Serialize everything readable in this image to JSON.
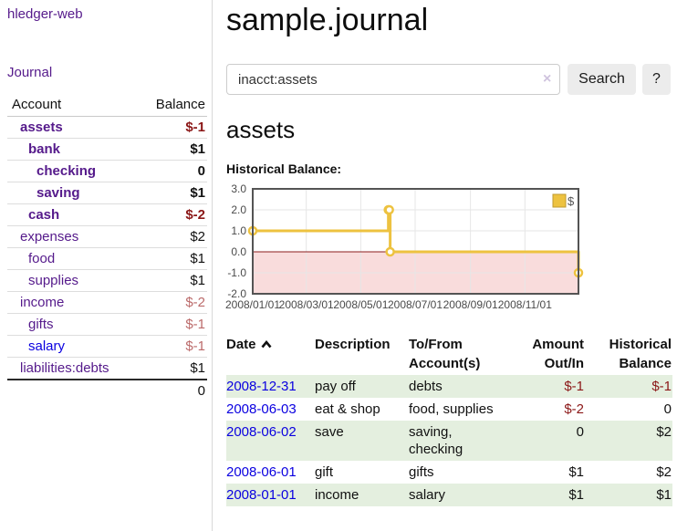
{
  "app": {
    "brand": "hledger-web",
    "nav_journal": "Journal"
  },
  "sidebar": {
    "header": {
      "account": "Account",
      "balance": "Balance"
    },
    "rows": [
      {
        "account": "assets",
        "balance": "$-1"
      },
      {
        "account": "bank",
        "balance": "$1"
      },
      {
        "account": "checking",
        "balance": "0"
      },
      {
        "account": "saving",
        "balance": "$1"
      },
      {
        "account": "cash",
        "balance": "$-2"
      },
      {
        "account": "expenses",
        "balance": "$2"
      },
      {
        "account": "food",
        "balance": "$1"
      },
      {
        "account": "supplies",
        "balance": "$1"
      },
      {
        "account": "income",
        "balance": "$-2"
      },
      {
        "account": "gifts",
        "balance": "$-1"
      },
      {
        "account": "salary",
        "balance": "$-1"
      },
      {
        "account": "liabilities:debts",
        "balance": "$1"
      }
    ],
    "total": "0"
  },
  "header": {
    "title": "sample.journal"
  },
  "search": {
    "value": "inacct:assets",
    "clear_icon": "×",
    "button": "Search",
    "help": "?"
  },
  "account_page": {
    "title": "assets",
    "chart_label": "Historical Balance:"
  },
  "chart_data": {
    "type": "line",
    "subtype": "step",
    "title": "Historical Balance:",
    "series": [
      {
        "name": "$",
        "color": "#edc240",
        "points": [
          {
            "date": "2008-01-01",
            "value": 1
          },
          {
            "date": "2008-06-01",
            "value": 2
          },
          {
            "date": "2008-06-02",
            "value": 2
          },
          {
            "date": "2008-06-03",
            "value": 0
          },
          {
            "date": "2008-12-31",
            "value": -1
          }
        ]
      }
    ],
    "x_range": [
      "2008-01-01",
      "2008-12-31"
    ],
    "ylim": [
      -2,
      3
    ],
    "y_ticks": [
      {
        "label": "3.0",
        "value": 3
      },
      {
        "label": "2.0",
        "value": 2
      },
      {
        "label": "1.0",
        "value": 1
      },
      {
        "label": "0.0",
        "value": 0
      },
      {
        "label": "-1.0",
        "value": -1
      },
      {
        "label": "-2.0",
        "value": -2
      }
    ],
    "x_ticks": [
      {
        "label": "2008/01/01",
        "date": "2008-01-01"
      },
      {
        "label": "2008/03/01",
        "date": "2008-03-01"
      },
      {
        "label": "2008/05/01",
        "date": "2008-05-01"
      },
      {
        "label": "2008/07/01",
        "date": "2008-07-01"
      },
      {
        "label": "2008/09/01",
        "date": "2008-09-01"
      },
      {
        "label": "2008/11/01",
        "date": "2008-11-01"
      }
    ],
    "legend": {
      "label": "$",
      "position": "top-right"
    },
    "grid": true,
    "negative_region_color": "#f9dcdc",
    "zero_line_color": "#8b1c1c",
    "border_color": "#545454",
    "gridline_color": "#e6e6e6"
  },
  "register": {
    "columns": {
      "date": "Date",
      "description": "Description",
      "accounts": "To/From Account(s)",
      "amount": "Amount Out/In",
      "balance": "Historical Balance"
    },
    "rows": [
      {
        "date": "2008-12-31",
        "description": "pay off",
        "accounts": "debts",
        "amount": "$-1",
        "balance": "$-1"
      },
      {
        "date": "2008-06-03",
        "description": "eat & shop",
        "accounts": "food, supplies",
        "amount": "$-2",
        "balance": "0"
      },
      {
        "date": "2008-06-02",
        "description": "save",
        "accounts": "saving,\nchecking",
        "amount": "0",
        "balance": "$2"
      },
      {
        "date": "2008-06-01",
        "description": "gift",
        "accounts": "gifts",
        "amount": "$1",
        "balance": "$2"
      },
      {
        "date": "2008-01-01",
        "description": "income",
        "accounts": "salary",
        "amount": "$1",
        "balance": "$1"
      }
    ]
  }
}
